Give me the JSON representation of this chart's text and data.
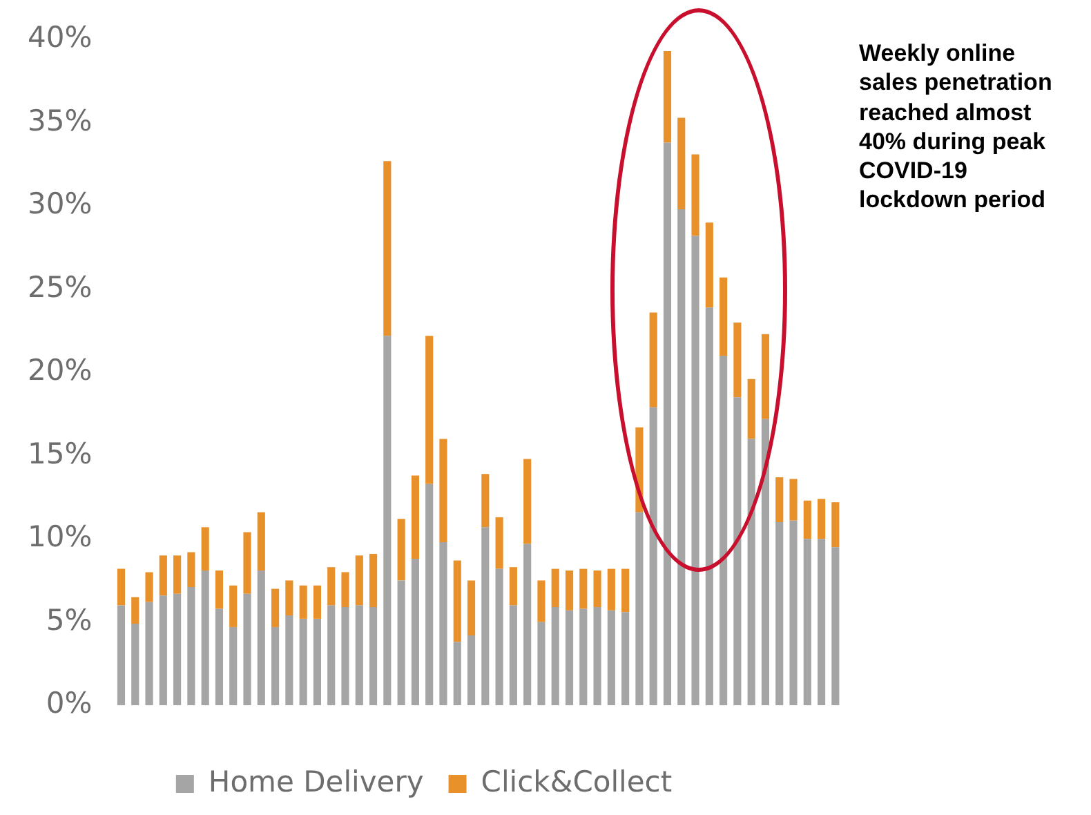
{
  "chart_data": {
    "type": "bar",
    "stacked": true,
    "categories": [
      null,
      null,
      null,
      null,
      null,
      null,
      null,
      null,
      null,
      null,
      null,
      null,
      null,
      null,
      null,
      null,
      null,
      null,
      null,
      null,
      null,
      null,
      null,
      null,
      null,
      null,
      null,
      null,
      null,
      null,
      null,
      null,
      null,
      null,
      null,
      null,
      null,
      null,
      null,
      null,
      null,
      null,
      null,
      null,
      null,
      null,
      null,
      null,
      null,
      null,
      null,
      null
    ],
    "series": [
      {
        "name": "Home Delivery",
        "color": "#a5a5a5",
        "values": [
          6.0,
          4.9,
          6.2,
          6.6,
          6.7,
          7.1,
          8.1,
          5.8,
          4.7,
          6.7,
          8.1,
          4.7,
          5.4,
          5.2,
          5.2,
          6.0,
          5.9,
          6.0,
          5.9,
          22.2,
          7.5,
          8.8,
          13.3,
          9.8,
          3.8,
          4.2,
          10.7,
          8.2,
          6.0,
          9.7,
          5.0,
          5.9,
          5.7,
          5.8,
          5.9,
          5.7,
          5.6,
          11.6,
          17.9,
          33.8,
          29.8,
          28.2,
          23.9,
          21.0,
          18.5,
          16.0,
          17.2,
          11.0,
          11.1,
          10.0,
          10.0,
          9.5
        ]
      },
      {
        "name": "Click&Collect",
        "color": "#e8912a",
        "values": [
          2.2,
          1.6,
          1.8,
          2.4,
          2.3,
          2.1,
          2.6,
          2.3,
          2.5,
          3.7,
          3.5,
          2.3,
          2.1,
          2.0,
          2.0,
          2.3,
          2.1,
          3.0,
          3.2,
          10.5,
          3.7,
          5.0,
          8.9,
          6.2,
          4.9,
          3.3,
          3.2,
          3.1,
          2.3,
          5.1,
          2.5,
          2.3,
          2.4,
          2.4,
          2.2,
          2.5,
          2.6,
          5.1,
          5.7,
          5.5,
          5.5,
          4.9,
          5.1,
          4.7,
          4.5,
          3.6,
          5.1,
          2.7,
          2.5,
          2.3,
          2.4,
          2.7
        ]
      }
    ],
    "ylim": [
      0,
      40
    ],
    "yticks": [
      {
        "value": 0,
        "label": "0%"
      },
      {
        "value": 5,
        "label": "5%"
      },
      {
        "value": 10,
        "label": "10%"
      },
      {
        "value": 15,
        "label": "15%"
      },
      {
        "value": 20,
        "label": "20%"
      },
      {
        "value": 25,
        "label": "25%"
      },
      {
        "value": 30,
        "label": "30%"
      },
      {
        "value": 35,
        "label": "35%"
      },
      {
        "value": 40,
        "label": "40%"
      }
    ],
    "grid": false,
    "legend": "bottom",
    "annotations": [
      "Weekly online sales penetration reached almost 40% during peak COVID-19 lockdown period"
    ]
  }
}
